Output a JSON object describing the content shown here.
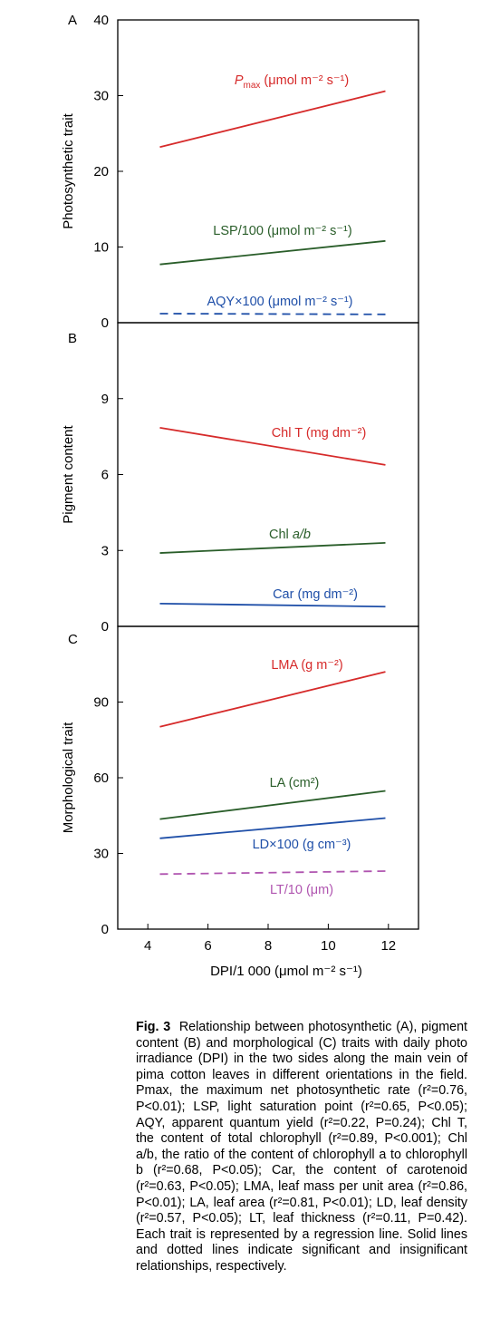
{
  "chart_data": [
    {
      "panel": "A",
      "type": "line",
      "ylabel": "Photosynthetic trait",
      "ylim": [
        0,
        40
      ],
      "yticks": [
        0,
        10,
        20,
        30,
        40
      ],
      "xlim": [
        3,
        13
      ],
      "series": [
        {
          "name": "Pmax (μmol m⁻² s⁻¹)",
          "name_parts": {
            "main": "P",
            "sub": "max",
            "tail": " (μmol m⁻² s⁻¹)"
          },
          "x": [
            4.4,
            11.9
          ],
          "y": [
            23.2,
            30.6
          ],
          "color": "#d62a2a",
          "dash": false
        },
        {
          "name": "LSP/100 (μmol m⁻² s⁻¹)",
          "x": [
            4.4,
            11.9
          ],
          "y": [
            7.7,
            10.8
          ],
          "color": "#2a5e2a",
          "dash": false
        },
        {
          "name": "AQY×100 (μmol m⁻² s⁻¹)",
          "x": [
            4.4,
            11.9
          ],
          "y": [
            1.2,
            1.1
          ],
          "color": "#1f4fa8",
          "dash": true
        }
      ]
    },
    {
      "panel": "B",
      "type": "line",
      "ylabel": "Pigment content",
      "ylim": [
        0,
        12
      ],
      "yticks": [
        0,
        3,
        6,
        9
      ],
      "xlim": [
        3,
        13
      ],
      "series": [
        {
          "name": "Chl T (mg dm⁻²)",
          "x": [
            4.4,
            11.9
          ],
          "y": [
            7.85,
            6.38
          ],
          "color": "#d62a2a",
          "dash": false
        },
        {
          "name": "Chl a/b",
          "name_parts": {
            "main": "Chl ",
            "italic": "a/b"
          },
          "x": [
            4.4,
            11.9
          ],
          "y": [
            2.9,
            3.3
          ],
          "color": "#2a5e2a",
          "dash": false
        },
        {
          "name": "Car (mg dm⁻²)",
          "x": [
            4.4,
            11.9
          ],
          "y": [
            0.9,
            0.78
          ],
          "color": "#1f4fa8",
          "dash": false
        }
      ]
    },
    {
      "panel": "C",
      "type": "line",
      "ylabel": "Morphological trait",
      "xlabel": "DPI/1 000 (μmol m⁻² s⁻¹)",
      "ylim": [
        0,
        120
      ],
      "yticks": [
        0,
        30,
        60,
        90
      ],
      "xlim": [
        3,
        13
      ],
      "xticks": [
        4,
        6,
        8,
        10,
        12
      ],
      "series": [
        {
          "name": "LMA (g m⁻²)",
          "x": [
            4.4,
            11.9
          ],
          "y": [
            80.2,
            102.0
          ],
          "color": "#d62a2a",
          "dash": false
        },
        {
          "name": "LA (cm²)",
          "x": [
            4.4,
            11.9
          ],
          "y": [
            43.6,
            54.8
          ],
          "color": "#2a5e2a",
          "dash": false
        },
        {
          "name": "LD×100 (g cm⁻³)",
          "x": [
            4.4,
            11.9
          ],
          "y": [
            36.0,
            44.0
          ],
          "color": "#1f4fa8",
          "dash": false
        },
        {
          "name": "LT/10 (μm)",
          "x": [
            4.4,
            11.9
          ],
          "y": [
            21.8,
            23.0
          ],
          "color": "#b055b0",
          "dash": true
        }
      ]
    }
  ],
  "caption": {
    "label": "Fig. 3",
    "text": "Relationship between photosynthetic (A), pigment content (B) and morphological (C) traits with daily photo irradiance (DPI) in the two sides along the main vein of pima cotton leaves in different orientations in the field. Pmax, the maximum net photosynthetic rate (r²=0.76, P<0.01); LSP, light saturation point (r²=0.65, P<0.05); AQY, apparent quantum yield (r²=0.22, P=0.24); Chl T, the content of total chlorophyll (r²=0.89, P<0.001); Chl a/b, the ratio of the content of chlorophyll a to chlorophyll b (r²=0.68, P<0.05); Car, the content of carotenoid (r²=0.63, P<0.05); LMA, leaf mass per unit area (r²=0.86, P<0.01); LA, leaf area (r²=0.81, P<0.01); LD, leaf density (r²=0.57, P<0.05); LT, leaf thickness (r²=0.11, P=0.42). Each trait is represented by a regression line. Solid lines and dotted lines indicate significant and insignificant relationships, respectively."
  }
}
